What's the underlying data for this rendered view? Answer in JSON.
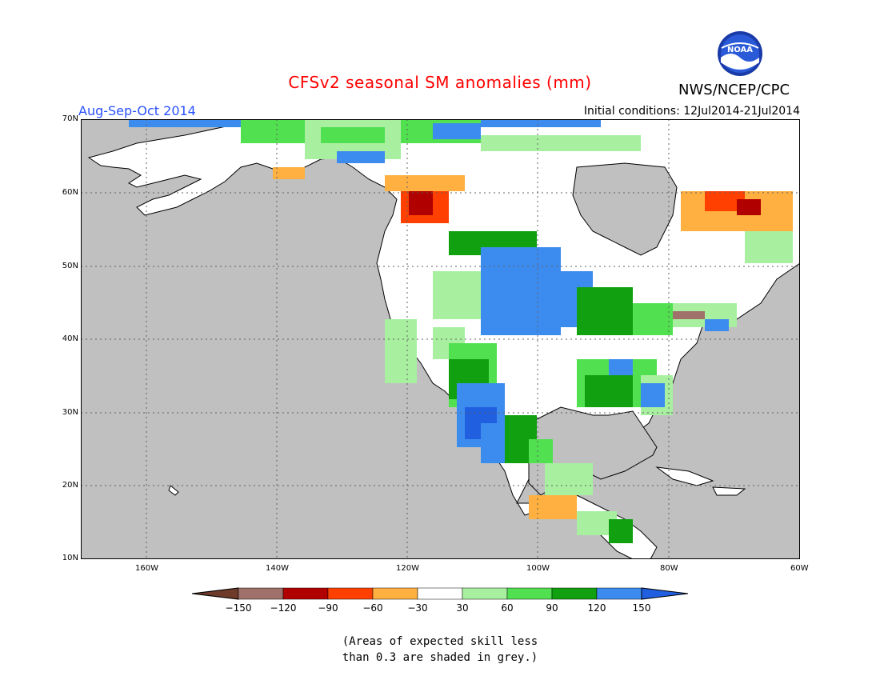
{
  "header": {
    "title": "CFSv2 seasonal SM anomalies (mm)",
    "period": "Aug-Sep-Oct 2014",
    "initial_conditions": "Initial conditions: 12Jul2014-21Jul2014",
    "agency": "NWS/NCEP/CPC",
    "logo_text": "NOAA"
  },
  "map": {
    "lat_labels": [
      "70N",
      "60N",
      "50N",
      "40N",
      "30N",
      "20N",
      "10N"
    ],
    "lon_labels": [
      "160W",
      "140W",
      "120W",
      "100W",
      "80W",
      "60W"
    ],
    "colors": {
      "ocean": "#c0c0c0",
      "land": "#ffffff",
      "grid": "#606060"
    }
  },
  "legend": {
    "tick_labels": [
      "-150",
      "-120",
      "-90",
      "-60",
      "-30",
      "30",
      "60",
      "90",
      "120",
      "150"
    ],
    "bins": [
      {
        "range": "< -150",
        "color": "#6e3b2a"
      },
      {
        "range": "-150 to -120",
        "color": "#a0706a"
      },
      {
        "range": "-120 to -90",
        "color": "#b00000"
      },
      {
        "range": "-90 to -60",
        "color": "#ff4000"
      },
      {
        "range": "-60 to -30",
        "color": "#ffb040"
      },
      {
        "range": "-30 to 30",
        "color": "#ffffff"
      },
      {
        "range": "30 to 60",
        "color": "#a8f0a0"
      },
      {
        "range": "60 to 90",
        "color": "#50e050"
      },
      {
        "range": "90 to 120",
        "color": "#10a010"
      },
      {
        "range": "120 to 150",
        "color": "#3c8cf0"
      },
      {
        "range": "> 150",
        "color": "#2060e0"
      }
    ]
  },
  "footnote": {
    "line1": "(Areas of expected skill less",
    "line2": "than 0.3 are shaded in grey.)"
  }
}
